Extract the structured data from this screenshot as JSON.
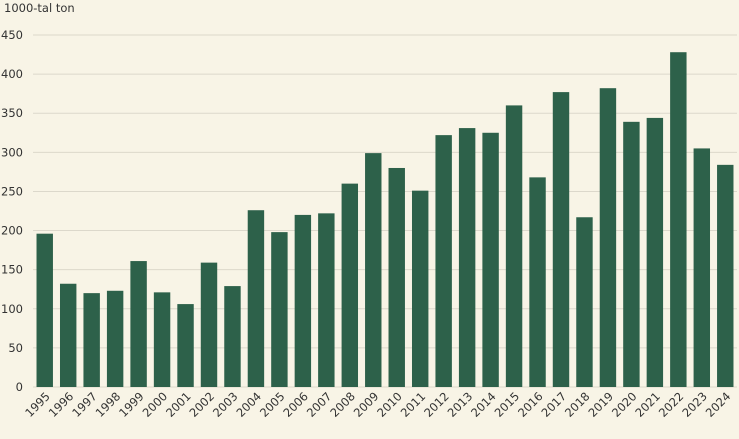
{
  "chart_data": {
    "type": "bar",
    "y_label": "1000-tal ton",
    "categories": [
      "1995",
      "1996",
      "1997",
      "1998",
      "1999",
      "2000",
      "2001",
      "2002",
      "2003",
      "2004",
      "2005",
      "2006",
      "2007",
      "2008",
      "2009",
      "2010",
      "2011",
      "2012",
      "2013",
      "2014",
      "2015",
      "2016",
      "2017",
      "2018",
      "2019",
      "2020",
      "2021",
      "2022",
      "2023",
      "2024"
    ],
    "values": [
      196,
      132,
      120,
      123,
      161,
      121,
      106,
      159,
      129,
      226,
      198,
      220,
      222,
      260,
      299,
      280,
      251,
      322,
      331,
      325,
      360,
      268,
      377,
      217,
      382,
      339,
      344,
      428,
      305,
      284
    ],
    "color": "#2d614a",
    "ylim": [
      0,
      450
    ],
    "yticks": [
      0,
      50,
      100,
      150,
      200,
      250,
      300,
      350,
      400,
      450
    ],
    "grid": true
  }
}
